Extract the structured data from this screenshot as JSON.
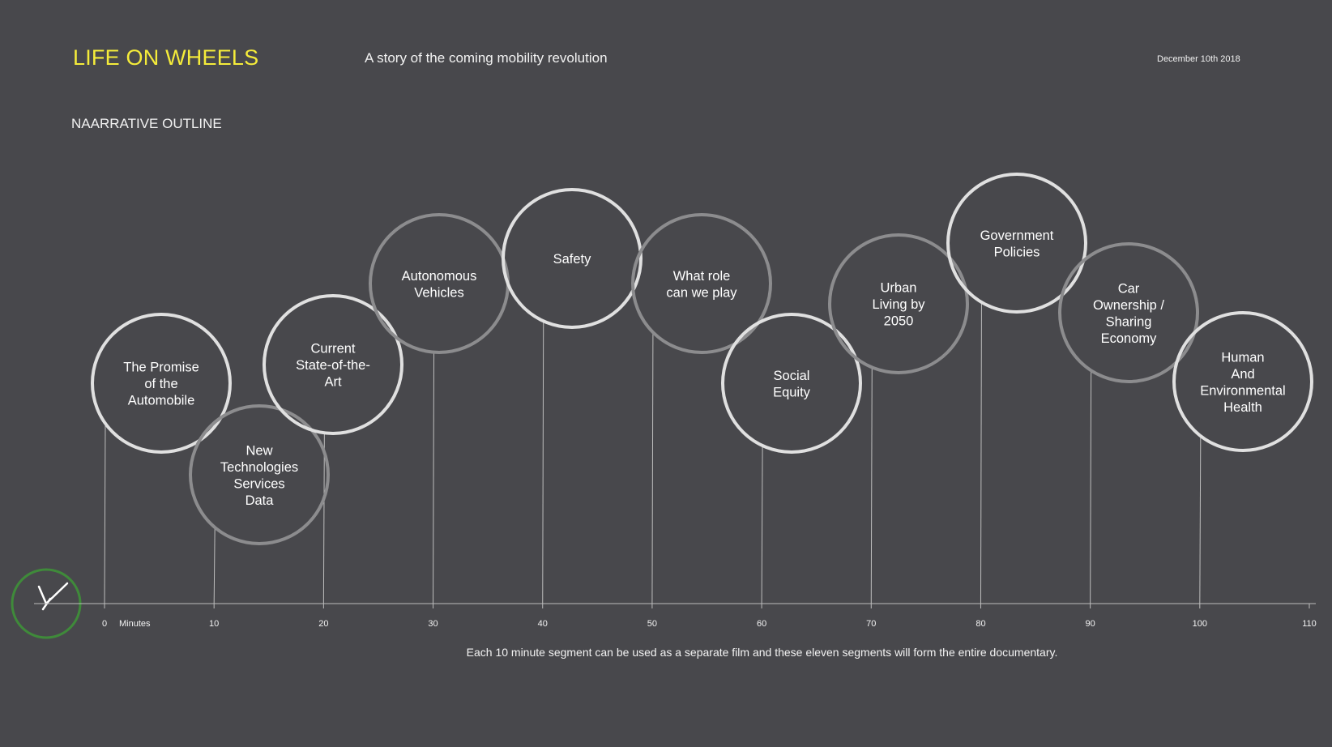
{
  "header": {
    "title": "LIFE ON WHEELS",
    "subtitle": "A story of the coming mobility revolution",
    "date": "December 10th  2018"
  },
  "section_title": "NAARRATIVE OUTLINE",
  "footer_note": "Each 10 minute segment can be used as a separate film and these eleven segments will form the entire documentary.",
  "axis": {
    "unit_label": "Minutes",
    "min": 0,
    "max": 110,
    "ticks": [
      0,
      10,
      20,
      30,
      40,
      50,
      60,
      70,
      80,
      90,
      100,
      110
    ]
  },
  "colors": {
    "background": "#48484c",
    "title": "#f5ec3a",
    "circle_bright": "#e0e0e0",
    "circle_dim": "#8c8c8e",
    "clock": "#3f8a3a",
    "connector": "#bdbdbd"
  },
  "clock_icon": "clock-icon",
  "segments": [
    {
      "minute": 0,
      "lines": [
        "The Promise",
        "of the",
        "Automobile"
      ],
      "style": "bright"
    },
    {
      "minute": 10,
      "lines": [
        "New",
        "Technologies",
        "Services",
        "Data"
      ],
      "style": "dim"
    },
    {
      "minute": 20,
      "lines": [
        "Current",
        "State-of-the-",
        "Art"
      ],
      "style": "bright"
    },
    {
      "minute": 30,
      "lines": [
        "Autonomous",
        "Vehicles"
      ],
      "style": "dim"
    },
    {
      "minute": 40,
      "lines": [
        "Safety"
      ],
      "style": "bright"
    },
    {
      "minute": 50,
      "lines": [
        "What role",
        "can we play"
      ],
      "style": "dim"
    },
    {
      "minute": 60,
      "lines": [
        "Social",
        "Equity"
      ],
      "style": "bright"
    },
    {
      "minute": 70,
      "lines": [
        "Urban",
        "Living by",
        "2050"
      ],
      "style": "dim"
    },
    {
      "minute": 80,
      "lines": [
        "Government",
        "Policies"
      ],
      "style": "bright"
    },
    {
      "minute": 90,
      "lines": [
        "Car",
        "Ownership /",
        "Sharing",
        "Economy"
      ],
      "style": "dim"
    },
    {
      "minute": 100,
      "lines": [
        "Human",
        "And",
        "Environmental",
        "Health"
      ],
      "style": "bright"
    }
  ]
}
